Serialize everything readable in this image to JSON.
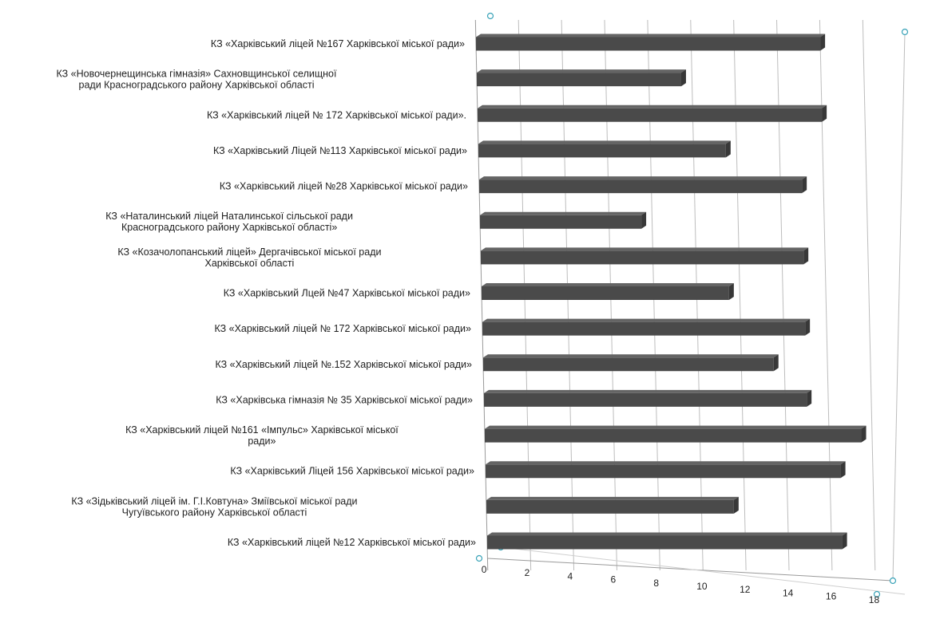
{
  "chart_data": {
    "type": "bar",
    "orientation": "horizontal",
    "style": "3d",
    "grid": true,
    "xlim": [
      0,
      18
    ],
    "x_ticks": [
      "0",
      "2",
      "4",
      "6",
      "8",
      "10",
      "12",
      "14",
      "16",
      "18"
    ],
    "bar_color": "#4a4a4a",
    "categories": [
      [
        "КЗ «Харківський ліцей  №167 Харківської міської ради»"
      ],
      [
        "КЗ «Новочернещинська  гімназія» Сахновщинської  селищної",
        "ради Красноградського  району Харківської області"
      ],
      [
        "КЗ  «Харківський ліцей  № 172 Харківської міської ради»."
      ],
      [
        "КЗ «Харківський Ліцей  №113 Харківської міської ради»"
      ],
      [
        "КЗ «Харківський ліцей  №28 Харківської міської ради»"
      ],
      [
        "КЗ «Наталинський  ліцей Наталинської  сільської ради",
        "Красноградського  району Харківської області»"
      ],
      [
        "КЗ «Козачолопанський  ліцей» Дергачівської міської ради",
        "Харківської області"
      ],
      [
        "КЗ «Харківський Лцей  №47 Харківської міської ради»"
      ],
      [
        "КЗ «Харківський ліцей  № 172 Харківської  міської ради»"
      ],
      [
        "КЗ «Харківський ліцей  №.152 Харківської  міської ради»"
      ],
      [
        "КЗ «Харківська гімназія № 35 Харківської міської ради»"
      ],
      [
        "КЗ «Харківський ліцей №161 «Імпульс» Харківської міської",
        "ради»"
      ],
      [
        "КЗ «Харківський Ліцей  156 Харківської міської ради»"
      ],
      [
        "КЗ «Зідьківський ліцей  ім.  Г.І.Ковтуна» Зміївської міської ради",
        "Чугуївського району Харківської  області"
      ],
      [
        "КЗ «Харківський ліцей  №12 Харківської міської ради»"
      ]
    ],
    "values": [
      16,
      9.5,
      16,
      11.5,
      15,
      7.5,
      15,
      11.5,
      15,
      13.5,
      15,
      17.5,
      16.5,
      11.5,
      16.5
    ]
  }
}
